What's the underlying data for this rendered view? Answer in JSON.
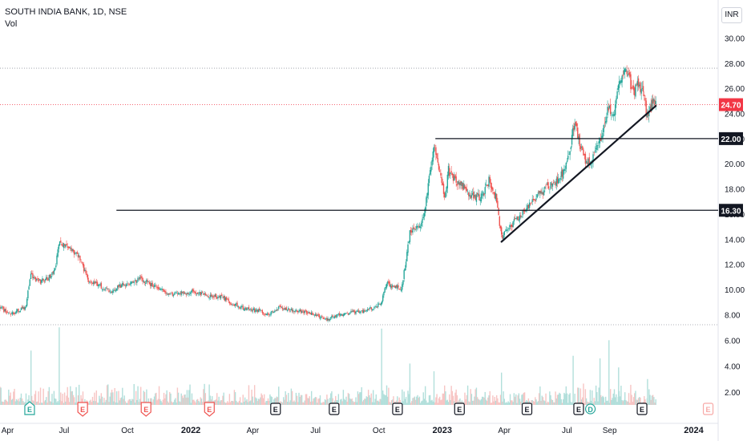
{
  "legend": {
    "title": "SOUTH INDIA BANK, 1D, NSE",
    "volume_label": "Vol"
  },
  "currency_label": "INR",
  "colors": {
    "up": "#26a69a",
    "down": "#ef5350",
    "up_volume": "#b2dfdb",
    "down_volume": "#f7c5c4",
    "level_line": "#131722",
    "last_price": "#f23645",
    "axis_text": "#131722"
  },
  "chart_data": {
    "type": "candlestick",
    "title": "SOUTH INDIA BANK, 1D, NSE",
    "currency": "INR",
    "x_tick_labels": [
      "Apr",
      "Jul",
      "Oct",
      "2022",
      "Apr",
      "Jul",
      "Oct",
      "2023",
      "Apr",
      "Jul",
      "Sep",
      "2024"
    ],
    "x_tick_dates": [
      "2021-04-01",
      "2021-07-01",
      "2021-10-01",
      "2022-01-01",
      "2022-04-01",
      "2022-07-01",
      "2022-10-01",
      "2023-01-01",
      "2023-04-01",
      "2023-07-01",
      "2023-09-01",
      "2024-01-01"
    ],
    "xlim": [
      "2021-03-30",
      "2024-02-02"
    ],
    "price_axis": {
      "ticks": [
        8,
        10,
        12,
        14,
        16,
        18,
        20,
        22,
        24,
        26,
        28,
        30
      ],
      "tick_labels": [
        "8.00",
        "10.00",
        "12.00",
        "14.00",
        "16.00",
        "18.00",
        "20.00",
        "22.00",
        "24.00",
        "26.00",
        "28.00",
        "30.00"
      ],
      "ylim": [
        7.2,
        30.6
      ]
    },
    "volume_axis": {
      "tick_labels": [
        "2.00",
        "4.00",
        "6.00"
      ],
      "ticks": [
        2,
        4,
        6
      ],
      "ylim": [
        1.0,
        7.2
      ]
    },
    "last_price": 24.7,
    "last_price_label": "24.70",
    "highlighted_levels": [
      {
        "value": 22.0,
        "label": "22.00",
        "from": "2022-12-22"
      },
      {
        "value": 16.3,
        "label": "16.30",
        "from": "2021-09-15"
      }
    ],
    "dotted_levels": [
      27.6,
      7.2
    ],
    "trendline": {
      "start": [
        "2023-03-28",
        13.8
      ],
      "end": [
        "2023-11-07",
        24.6
      ]
    },
    "price_path": [
      [
        "2021-03-30",
        8.6
      ],
      [
        "2021-04-14",
        8.0
      ],
      [
        "2021-05-06",
        8.6
      ],
      [
        "2021-05-14",
        11.2
      ],
      [
        "2021-05-26",
        10.6
      ],
      [
        "2021-06-10",
        11.0
      ],
      [
        "2021-06-18",
        11.6
      ],
      [
        "2021-06-24",
        13.8
      ],
      [
        "2021-07-05",
        13.3
      ],
      [
        "2021-07-22",
        12.7
      ],
      [
        "2021-08-05",
        10.8
      ],
      [
        "2021-08-20",
        10.4
      ],
      [
        "2021-09-06",
        9.8
      ],
      [
        "2021-09-20",
        10.3
      ],
      [
        "2021-10-05",
        10.5
      ],
      [
        "2021-10-20",
        10.9
      ],
      [
        "2021-10-29",
        10.6
      ],
      [
        "2021-11-15",
        10.1
      ],
      [
        "2021-12-01",
        9.6
      ],
      [
        "2021-12-15",
        9.7
      ],
      [
        "2022-01-05",
        9.8
      ],
      [
        "2022-01-24",
        9.5
      ],
      [
        "2022-02-15",
        9.4
      ],
      [
        "2022-03-01",
        8.9
      ],
      [
        "2022-03-20",
        8.5
      ],
      [
        "2022-04-10",
        8.3
      ],
      [
        "2022-04-25",
        8.0
      ],
      [
        "2022-05-10",
        8.6
      ],
      [
        "2022-05-25",
        8.4
      ],
      [
        "2022-06-15",
        8.2
      ],
      [
        "2022-07-01",
        8.0
      ],
      [
        "2022-07-15",
        7.6
      ],
      [
        "2022-08-01",
        7.9
      ],
      [
        "2022-08-25",
        8.2
      ],
      [
        "2022-09-10",
        8.3
      ],
      [
        "2022-09-25",
        8.6
      ],
      [
        "2022-10-05",
        9.0
      ],
      [
        "2022-10-12",
        10.6
      ],
      [
        "2022-10-20",
        10.3
      ],
      [
        "2022-11-03",
        10.1
      ],
      [
        "2022-11-07",
        11.5
      ],
      [
        "2022-11-15",
        14.6
      ],
      [
        "2022-11-30",
        15.0
      ],
      [
        "2022-12-07",
        16.5
      ],
      [
        "2022-12-12",
        18.6
      ],
      [
        "2022-12-20",
        21.6
      ],
      [
        "2022-12-26",
        20.0
      ],
      [
        "2023-01-05",
        17.1
      ],
      [
        "2023-01-10",
        19.5
      ],
      [
        "2023-01-20",
        18.6
      ],
      [
        "2023-02-01",
        18.2
      ],
      [
        "2023-02-15",
        17.3
      ],
      [
        "2023-03-01",
        17.4
      ],
      [
        "2023-03-10",
        18.8
      ],
      [
        "2023-03-20",
        17.3
      ],
      [
        "2023-03-28",
        14.2
      ],
      [
        "2023-04-10",
        15.1
      ],
      [
        "2023-04-25",
        15.8
      ],
      [
        "2023-05-10",
        17.0
      ],
      [
        "2023-05-25",
        17.8
      ],
      [
        "2023-06-10",
        18.4
      ],
      [
        "2023-06-25",
        19.2
      ],
      [
        "2023-07-05",
        21.0
      ],
      [
        "2023-07-12",
        23.4
      ],
      [
        "2023-07-20",
        21.4
      ],
      [
        "2023-07-30",
        19.9
      ],
      [
        "2023-08-08",
        20.5
      ],
      [
        "2023-08-18",
        21.8
      ],
      [
        "2023-08-25",
        23.5
      ],
      [
        "2023-08-31",
        24.6
      ],
      [
        "2023-09-08",
        23.8
      ],
      [
        "2023-09-14",
        26.5
      ],
      [
        "2023-09-20",
        27.2
      ],
      [
        "2023-09-28",
        27.0
      ],
      [
        "2023-10-05",
        25.5
      ],
      [
        "2023-10-12",
        26.4
      ],
      [
        "2023-10-20",
        25.5
      ],
      [
        "2023-10-26",
        23.5
      ],
      [
        "2023-11-02",
        24.8
      ],
      [
        "2023-11-07",
        24.7
      ]
    ],
    "volume_spikes": [
      [
        "2021-05-14",
        5.2
      ],
      [
        "2021-06-24",
        7.0
      ],
      [
        "2022-10-05",
        6.9
      ],
      [
        "2022-11-15",
        4.2
      ],
      [
        "2022-12-20",
        3.6
      ],
      [
        "2023-03-28",
        3.5
      ],
      [
        "2023-07-10",
        4.8
      ],
      [
        "2023-08-18",
        4.6
      ],
      [
        "2023-08-31",
        6.0
      ],
      [
        "2023-09-14",
        3.9
      ],
      [
        "2023-10-26",
        3.0
      ]
    ],
    "event_markers": [
      {
        "letter": "E",
        "date": "2021-05-12",
        "kind": "up"
      },
      {
        "letter": "E",
        "date": "2021-07-28",
        "kind": "down"
      },
      {
        "letter": "E",
        "date": "2021-10-28",
        "kind": "down"
      },
      {
        "letter": "E",
        "date": "2022-01-28",
        "kind": "down"
      },
      {
        "letter": "E",
        "date": "2022-05-04",
        "kind": "neutral"
      },
      {
        "letter": "E",
        "date": "2022-07-28",
        "kind": "neutral"
      },
      {
        "letter": "E",
        "date": "2022-10-28",
        "kind": "neutral"
      },
      {
        "letter": "E",
        "date": "2023-01-26",
        "kind": "neutral"
      },
      {
        "letter": "E",
        "date": "2023-05-04",
        "kind": "neutral"
      },
      {
        "letter": "E",
        "date": "2023-07-18",
        "kind": "neutral"
      },
      {
        "letter": "D",
        "date": "2023-08-04",
        "kind": "dividend"
      },
      {
        "letter": "E",
        "date": "2023-10-18",
        "kind": "neutral"
      },
      {
        "letter": "E",
        "date": "2024-01-22",
        "kind": "upcoming"
      }
    ]
  }
}
